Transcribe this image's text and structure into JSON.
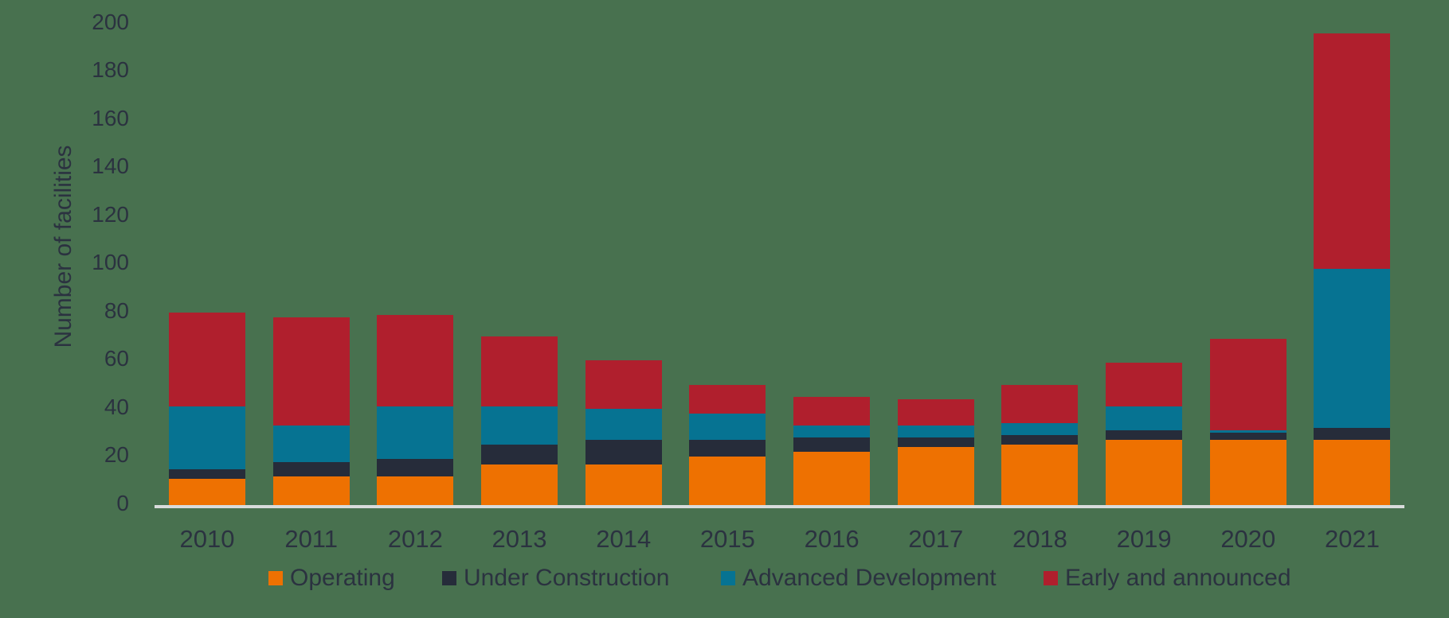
{
  "chart_data": {
    "type": "bar",
    "stacked": true,
    "title": "",
    "xlabel": "",
    "ylabel": "Number of facilities",
    "ylim": [
      0,
      200
    ],
    "ytick_step": 20,
    "yticks": [
      0,
      20,
      40,
      60,
      80,
      100,
      120,
      140,
      160,
      180,
      200
    ],
    "grid": false,
    "legend_position": "bottom",
    "categories": [
      "2010",
      "2011",
      "2012",
      "2013",
      "2014",
      "2015",
      "2016",
      "2017",
      "2018",
      "2019",
      "2020",
      "2021"
    ],
    "series": [
      {
        "name": "Operating",
        "color": "#EE7101",
        "values": [
          11,
          12,
          12,
          17,
          17,
          20,
          22,
          24,
          25,
          27,
          27,
          27
        ]
      },
      {
        "name": "Under Construction",
        "color": "#262C3A",
        "values": [
          4,
          6,
          7,
          8,
          10,
          7,
          6,
          4,
          4,
          4,
          3,
          5
        ]
      },
      {
        "name": "Advanced Development",
        "color": "#067392",
        "values": [
          26,
          15,
          22,
          16,
          13,
          11,
          5,
          5,
          5,
          10,
          1,
          66
        ]
      },
      {
        "name": "Early and announced",
        "color": "#B01F2D",
        "values": [
          39,
          45,
          38,
          29,
          20,
          12,
          12,
          11,
          16,
          18,
          38,
          98
        ]
      }
    ],
    "totals": [
      80,
      78,
      79,
      70,
      60,
      50,
      45,
      44,
      50,
      59,
      69,
      196
    ]
  },
  "colors": {
    "background": "#48714F",
    "text": "#2B3240",
    "axis_line": "#D8DBDB"
  }
}
